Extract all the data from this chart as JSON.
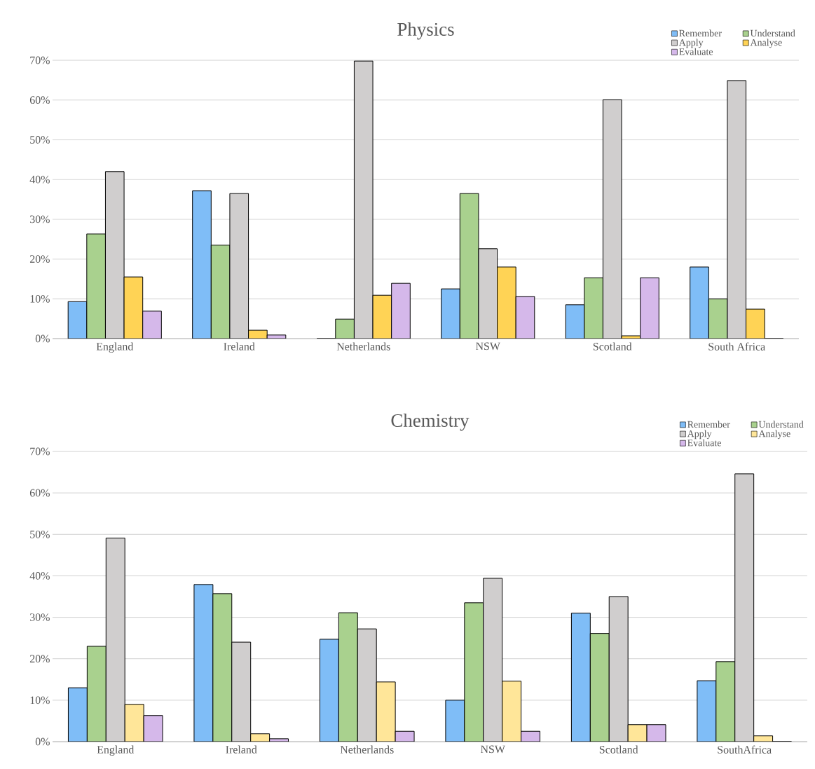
{
  "chart_data": [
    {
      "type": "bar",
      "title": "Physics",
      "categories": [
        "England",
        "Ireland",
        "Netherlands",
        "NSW",
        "Scotland",
        "South Africa"
      ],
      "series": [
        {
          "name": "Remember",
          "color": "#7fbdf7",
          "values": [
            9.3,
            37.2,
            0,
            12.5,
            8.5,
            18
          ]
        },
        {
          "name": "Understand",
          "color": "#a9d18e",
          "values": [
            26.3,
            23.5,
            4.9,
            36.5,
            15.3,
            10
          ]
        },
        {
          "name": "Apply",
          "color": "#d0cece",
          "values": [
            42,
            36.5,
            69.8,
            22.6,
            60.1,
            64.9
          ]
        },
        {
          "name": "Analyse",
          "color": "#ffd355",
          "values": [
            15.5,
            2.1,
            10.9,
            18,
            0.7,
            7.4
          ]
        },
        {
          "name": "Evaluate",
          "color": "#d5b8ea",
          "values": [
            6.9,
            0.9,
            13.9,
            10.6,
            15.3,
            0
          ]
        }
      ],
      "ylim": [
        0,
        70
      ],
      "yticks": [
        {
          "value": 0,
          "label": "0%"
        },
        {
          "value": 10,
          "label": "10%"
        },
        {
          "value": 20,
          "label": "20%"
        },
        {
          "value": 30,
          "label": "30%"
        },
        {
          "value": 40,
          "label": "40%"
        },
        {
          "value": 50,
          "label": "50%"
        },
        {
          "value": 60,
          "label": "60%"
        },
        {
          "value": 70,
          "label": "70%"
        }
      ],
      "grid": "y",
      "legend": "top right"
    },
    {
      "type": "bar",
      "title": "Chemistry",
      "categories": [
        "England",
        "Ireland",
        "Netherlands",
        "NSW",
        "Scotland",
        "SouthAfrica"
      ],
      "series": [
        {
          "name": "Remember",
          "color": "#7fbdf7",
          "values": [
            13,
            37.9,
            24.7,
            10,
            31,
            14.7
          ]
        },
        {
          "name": "Understand",
          "color": "#a9d18e",
          "values": [
            23,
            35.7,
            31.1,
            33.5,
            26.1,
            19.3
          ]
        },
        {
          "name": "Apply",
          "color": "#d0cece",
          "values": [
            49.1,
            24,
            27.2,
            39.4,
            35,
            64.6
          ]
        },
        {
          "name": "Analyse",
          "color": "#ffe699",
          "values": [
            9,
            1.9,
            14.4,
            14.6,
            4.1,
            1.4
          ]
        },
        {
          "name": "Evaluate",
          "color": "#d5b8ea",
          "values": [
            6.3,
            0.7,
            2.5,
            2.5,
            4.1,
            0
          ]
        }
      ],
      "ylim": [
        0,
        70
      ],
      "yticks": [
        {
          "value": 0,
          "label": "0%"
        },
        {
          "value": 10,
          "label": "10%"
        },
        {
          "value": 20,
          "label": "20%"
        },
        {
          "value": 30,
          "label": "30%"
        },
        {
          "value": 40,
          "label": "40%"
        },
        {
          "value": 50,
          "label": "50%"
        },
        {
          "value": 60,
          "label": "60%"
        },
        {
          "value": 70,
          "label": "70%"
        }
      ],
      "grid": "y",
      "legend": "top right"
    }
  ]
}
